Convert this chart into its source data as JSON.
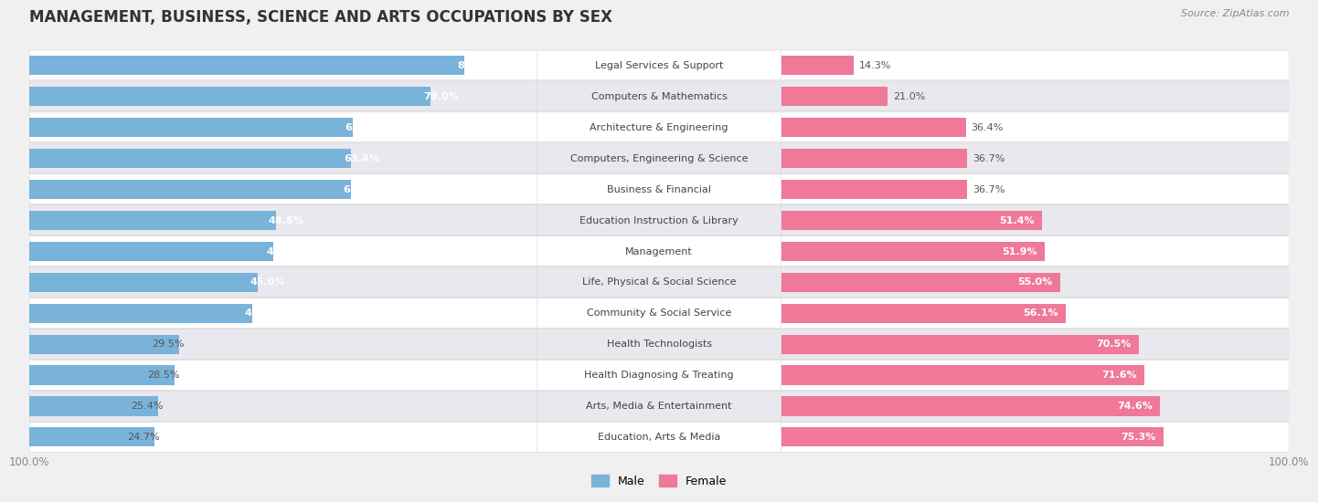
{
  "title": "MANAGEMENT, BUSINESS, SCIENCE AND ARTS OCCUPATIONS BY SEX",
  "source": "Source: ZipAtlas.com",
  "categories": [
    "Legal Services & Support",
    "Computers & Mathematics",
    "Architecture & Engineering",
    "Computers, Engineering & Science",
    "Business & Financial",
    "Education Instruction & Library",
    "Management",
    "Life, Physical & Social Science",
    "Community & Social Service",
    "Health Technologists",
    "Health Diagnosing & Treating",
    "Arts, Media & Entertainment",
    "Education, Arts & Media"
  ],
  "male_pct": [
    85.7,
    79.0,
    63.6,
    63.4,
    63.3,
    48.6,
    48.1,
    45.0,
    43.9,
    29.5,
    28.5,
    25.4,
    24.7
  ],
  "female_pct": [
    14.3,
    21.0,
    36.4,
    36.7,
    36.7,
    51.4,
    51.9,
    55.0,
    56.1,
    70.5,
    71.6,
    74.6,
    75.3
  ],
  "male_color": "#7ab3d9",
  "female_color": "#f07898",
  "bg_color": "#f0f0f0",
  "row_light_color": "#ffffff",
  "row_dark_color": "#e8e8ee",
  "bar_height": 0.62,
  "title_fontsize": 12,
  "label_fontsize": 8.0,
  "pct_fontsize": 8.0,
  "axis_label_fontsize": 8.5
}
